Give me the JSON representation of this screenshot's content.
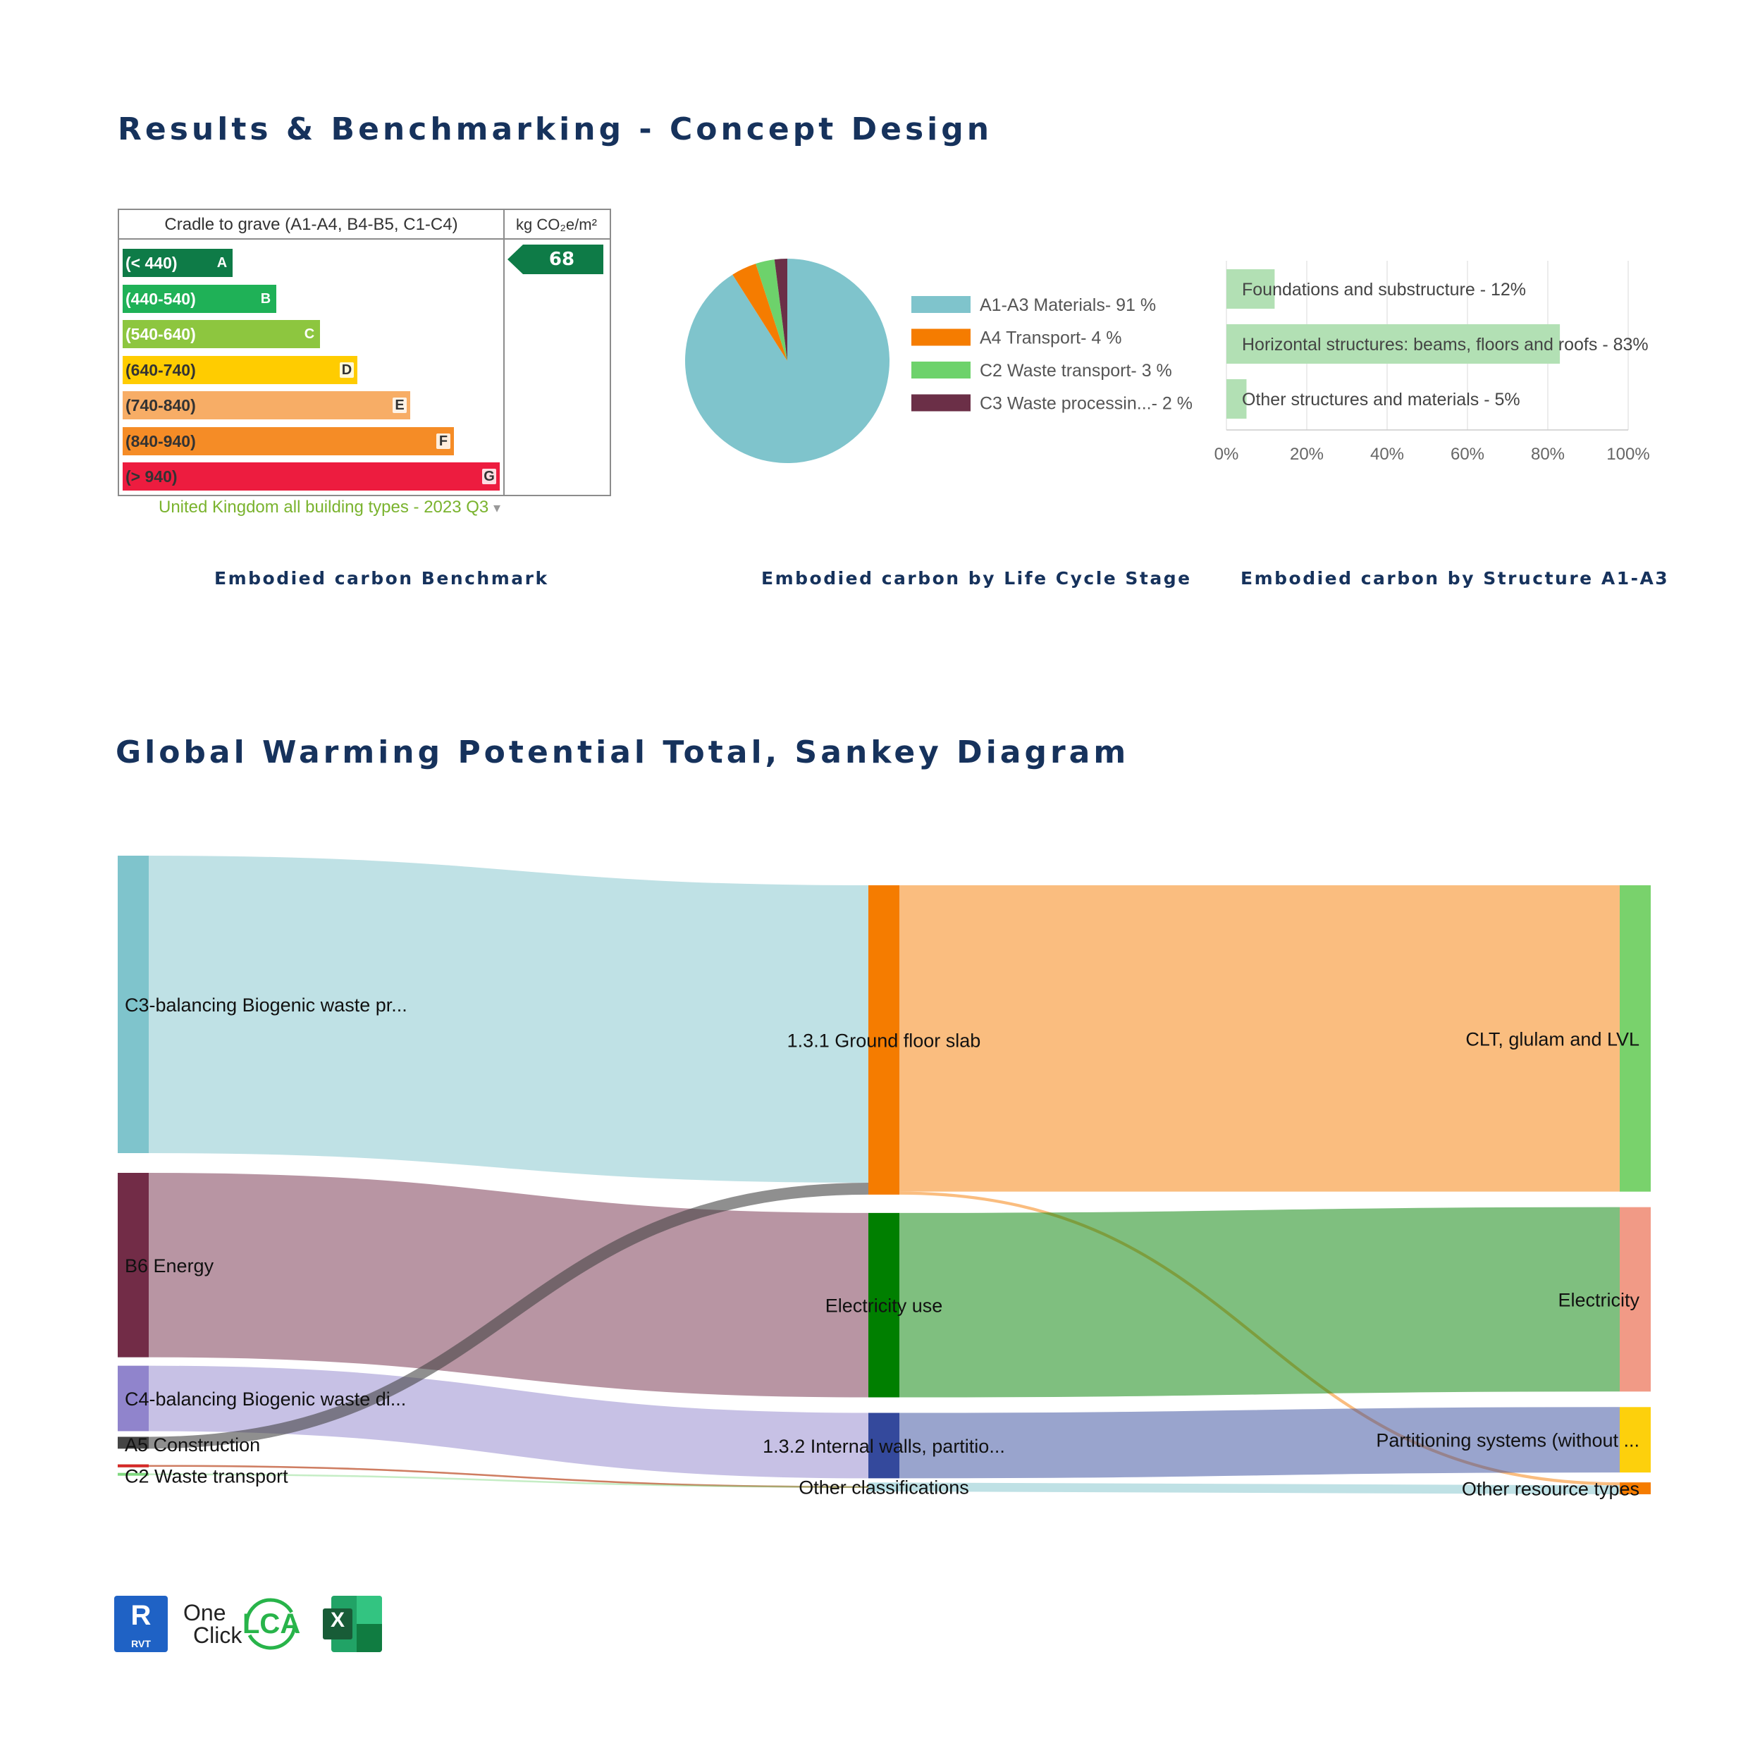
{
  "headings": {
    "results": "Results & Benchmarking - Concept Design",
    "sankey": "Global Warming Potential Total, Sankey Diagram"
  },
  "captions": {
    "benchmark": "Embodied carbon Benchmark",
    "lifecycle": "Embodied carbon by Life Cycle Stage",
    "structure": "Embodied carbon by Structure A1-A3"
  },
  "benchmark": {
    "header_left": "Cradle to grave (A1-A4, B4-B5, C1-C4)",
    "header_right_unit": "kg CO₂e/m²",
    "value": "68",
    "value_color": "#0e7b47",
    "source": "United Kingdom all building types - 2023 Q3",
    "source_caret": "▾",
    "bands": [
      {
        "range": "(< 440)",
        "letter": "A",
        "color": "#0e7b47",
        "text_color": "#ffffff"
      },
      {
        "range": "(440-540)",
        "letter": "B",
        "color": "#1fb157",
        "text_color": "#ffffff"
      },
      {
        "range": "(540-640)",
        "letter": "C",
        "color": "#8dc63f",
        "text_color": "#ffffff"
      },
      {
        "range": "(640-740)",
        "letter": "D",
        "color": "#ffcc00",
        "text_color": "#333333"
      },
      {
        "range": "(740-840)",
        "letter": "E",
        "color": "#f7ad66",
        "text_color": "#333333"
      },
      {
        "range": "(840-940)",
        "letter": "F",
        "color": "#f58c26",
        "text_color": "#333333"
      },
      {
        "range": "(> 940)",
        "letter": "G",
        "color": "#ed1c3f",
        "text_color": "#333333"
      }
    ]
  },
  "chart_data": [
    {
      "type": "pie",
      "title": "Embodied carbon by Life Cycle Stage",
      "slices": [
        {
          "label": "A1-A3 Materials- 91 %",
          "value": 91,
          "color": "#7fc4cc"
        },
        {
          "label": "A4 Transport- 4 %",
          "value": 4,
          "color": "#f57c00"
        },
        {
          "label": "C2 Waste transport- 3 %",
          "value": 3,
          "color": "#6dd26b"
        },
        {
          "label": "C3 Waste processin...- 2 %",
          "value": 2,
          "color": "#6b2f47"
        }
      ]
    },
    {
      "type": "bar",
      "orientation": "horizontal",
      "title": "Embodied carbon by Structure A1-A3",
      "categories": [
        "Foundations and substructure - 12%",
        "Horizontal structures: beams, floors and roofs - 83%",
        "Other structures and materials - 5%"
      ],
      "values": [
        12,
        83,
        5
      ],
      "color": "#b2e0b4",
      "xlim": [
        0,
        100
      ],
      "xticks": [
        "0%",
        "20%",
        "40%",
        "60%",
        "80%",
        "100%"
      ]
    },
    {
      "type": "sankey",
      "title": "Global Warming Potential Total, Sankey Diagram",
      "nodes": [
        {
          "name": "C3-balancing Biogenic waste pr...",
          "col": 0,
          "value": 100,
          "color": "#7fc4cc"
        },
        {
          "name": "B6 Energy",
          "col": 0,
          "value": 62,
          "color": "#722c47"
        },
        {
          "name": "C4-balancing Biogenic waste di...",
          "col": 0,
          "value": 22,
          "color": "#9084cc"
        },
        {
          "name": "A5 Construction",
          "col": 0,
          "value": 4,
          "color": "#444444"
        },
        {
          "name": "",
          "col": 0,
          "value": 1.5,
          "color": "#857a10"
        },
        {
          "name": "",
          "col": 0,
          "value": 0.8,
          "color": "#d62728"
        },
        {
          "name": "C2 Waste transport",
          "col": 0,
          "value": 0.8,
          "color": "#7fd87f"
        },
        {
          "name": "1.3.1 Ground floor slab",
          "col": 1,
          "value": 104,
          "color": "#f57c00"
        },
        {
          "name": "Electricity use",
          "col": 1,
          "value": 62,
          "color": "#007f00"
        },
        {
          "name": "1.3.2 Internal walls, partitio...",
          "col": 1,
          "value": 22,
          "color": "#34499c"
        },
        {
          "name": "Other classifications",
          "col": 1,
          "value": 3,
          "color": "#b7dfe5"
        },
        {
          "name": "CLT, glulam and LVL",
          "col": 2,
          "value": 103,
          "color": "#79d26c"
        },
        {
          "name": "Electricity",
          "col": 2,
          "value": 62,
          "color": "#f19a86"
        },
        {
          "name": "Partitioning systems (without ...",
          "col": 2,
          "value": 22,
          "color": "#fdd00c"
        },
        {
          "name": "Other resource types",
          "col": 2,
          "value": 4,
          "color": "#f57c00"
        }
      ],
      "links": [
        {
          "source": "C3-balancing Biogenic waste pr...",
          "target": "1.3.1 Ground floor slab",
          "value": 100
        },
        {
          "source": "B6 Energy",
          "target": "Electricity use",
          "value": 62
        },
        {
          "source": "C4-balancing Biogenic waste di...",
          "target": "1.3.2 Internal walls, partitio...",
          "value": 22
        },
        {
          "source": "A5 Construction",
          "target": "1.3.1 Ground floor slab",
          "value": 4
        },
        {
          "source": "1.3.1 Ground floor slab",
          "target": "CLT, glulam and LVL",
          "value": 103
        },
        {
          "source": "1.3.1 Ground floor slab",
          "target": "Other resource types",
          "value": 1
        },
        {
          "source": "Electricity use",
          "target": "Electricity",
          "value": 62
        },
        {
          "source": "1.3.2 Internal walls, partitio...",
          "target": "Partitioning systems (without ...",
          "value": 22
        },
        {
          "source": "Other classifications",
          "target": "Other resource types",
          "value": 3
        }
      ]
    }
  ],
  "logos": {
    "revit_letter": "R",
    "revit_sub": "RVT",
    "oneclick_one": "One",
    "oneclick_click": "Click",
    "lca": "LCA",
    "excel_letter": "X"
  }
}
